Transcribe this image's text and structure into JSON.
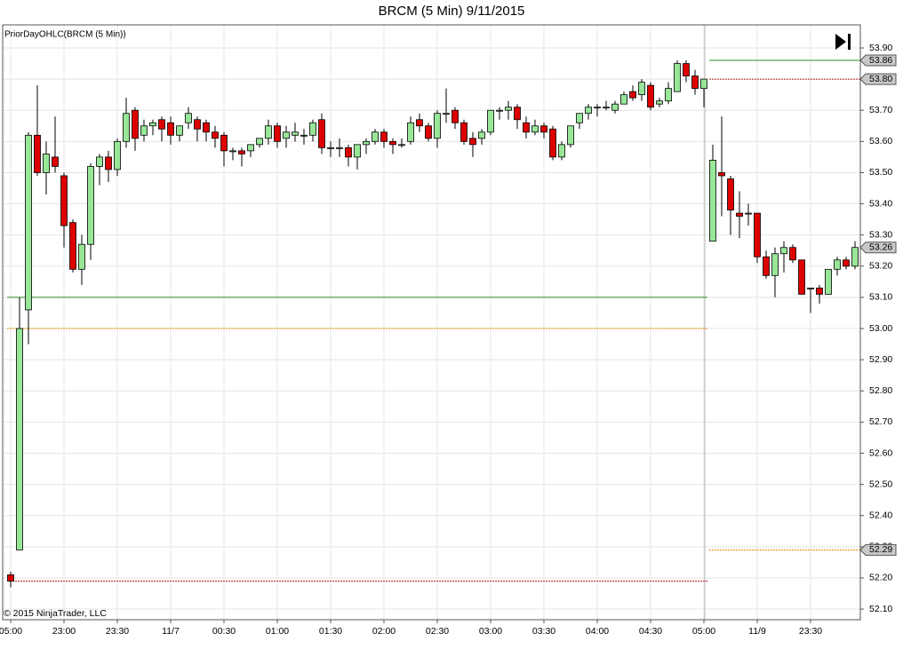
{
  "chart_data": {
    "type": "candlestick",
    "title": "BRCM (5 Min)  9/11/2015",
    "indicator_label": "PriorDayOHLC(BRCM (5 Min))",
    "copyright": "© 2015 NinjaTrader, LLC",
    "up_color": "#98e698",
    "down_color": "#dd0000",
    "grid": true,
    "categories": [
      "05:00",
      null,
      null,
      null,
      null,
      null,
      "23:00",
      null,
      null,
      null,
      null,
      null,
      "23:30",
      null,
      null,
      null,
      null,
      null,
      "11/7",
      null,
      null,
      null,
      null,
      null,
      "00:30",
      null,
      null,
      null,
      null,
      null,
      "01:00",
      null,
      null,
      null,
      null,
      null,
      "01:30",
      null,
      null,
      null,
      null,
      null,
      "02:00",
      null,
      null,
      null,
      null,
      null,
      "02:30",
      null,
      null,
      null,
      null,
      null,
      "03:00",
      null,
      null,
      null,
      null,
      null,
      "03:30",
      null,
      null,
      null,
      null,
      null,
      "04:00",
      null,
      null,
      null,
      null,
      null,
      "04:30",
      null,
      null,
      null,
      null,
      null,
      "05:00",
      null,
      null,
      null,
      null,
      null,
      "11/9",
      null,
      null,
      null,
      null,
      null,
      "23:30",
      null,
      null,
      null,
      null,
      null
    ],
    "open": [
      52.21,
      52.29,
      53.06,
      53.62,
      53.5,
      53.55,
      53.49,
      53.34,
      53.19,
      53.27,
      53.52,
      53.55,
      53.51,
      53.6,
      53.7,
      53.62,
      53.65,
      53.67,
      53.66,
      53.62,
      53.66,
      53.67,
      53.66,
      53.63,
      53.62,
      53.57,
      53.57,
      53.57,
      53.59,
      53.61,
      53.65,
      53.61,
      53.62,
      53.62,
      53.62,
      53.67,
      53.58,
      53.58,
      53.58,
      53.55,
      53.59,
      53.6,
      53.63,
      53.6,
      53.59,
      53.6,
      53.67,
      53.65,
      53.61,
      53.69,
      53.7,
      53.66,
      53.61,
      53.61,
      53.63,
      53.7,
      53.7,
      53.71,
      53.66,
      53.63,
      53.65,
      53.64,
      53.55,
      53.59,
      53.66,
      53.69,
      53.71,
      53.71,
      53.7,
      53.72,
      53.76,
      53.75,
      53.78,
      53.72,
      53.73,
      53.76,
      53.85,
      53.81,
      53.77,
      53.28,
      53.5,
      53.48,
      53.37,
      53.37,
      53.37,
      53.23,
      53.17,
      53.24,
      53.26,
      53.22,
      53.13,
      53.13,
      53.11,
      53.19,
      53.22,
      53.2
    ],
    "high": [
      52.22,
      53.1,
      53.63,
      53.78,
      53.6,
      53.68,
      53.5,
      53.35,
      53.3,
      53.53,
      53.56,
      53.57,
      53.61,
      53.74,
      53.71,
      53.67,
      53.67,
      53.68,
      53.68,
      53.65,
      53.71,
      53.68,
      53.67,
      53.65,
      53.63,
      53.58,
      53.58,
      53.59,
      53.61,
      53.67,
      53.66,
      53.65,
      53.66,
      53.64,
      53.67,
      53.69,
      53.6,
      53.61,
      53.59,
      53.59,
      53.61,
      53.64,
      53.64,
      53.61,
      53.61,
      53.68,
      53.69,
      53.66,
      53.7,
      53.77,
      53.71,
      53.67,
      53.63,
      53.64,
      53.7,
      53.71,
      53.73,
      53.72,
      53.68,
      53.67,
      53.66,
      53.65,
      53.6,
      53.65,
      53.69,
      53.72,
      53.72,
      53.73,
      53.73,
      53.76,
      53.78,
      53.8,
      53.79,
      53.74,
      53.79,
      53.86,
      53.86,
      53.83,
      53.8,
      53.59,
      53.68,
      53.49,
      53.44,
      53.4,
      53.37,
      53.25,
      53.26,
      53.28,
      53.27,
      53.22,
      53.13,
      53.14,
      53.19,
      53.23,
      53.23,
      53.28
    ],
    "low": [
      52.17,
      52.29,
      52.95,
      53.49,
      53.43,
      53.5,
      53.26,
      53.18,
      53.14,
      53.22,
      53.46,
      53.47,
      53.49,
      53.58,
      53.57,
      53.6,
      53.62,
      53.6,
      53.59,
      53.6,
      53.64,
      53.6,
      53.6,
      53.58,
      53.52,
      53.54,
      53.52,
      53.55,
      53.58,
      53.59,
      53.58,
      53.58,
      53.6,
      53.59,
      53.6,
      53.56,
      53.55,
      53.55,
      53.52,
      53.51,
      53.56,
      53.59,
      53.58,
      53.56,
      53.58,
      53.59,
      53.63,
      53.6,
      53.58,
      53.66,
      53.64,
      53.59,
      53.55,
      53.59,
      53.62,
      53.67,
      53.67,
      53.64,
      53.61,
      53.62,
      53.61,
      53.54,
      53.54,
      53.58,
      53.64,
      53.67,
      53.68,
      53.7,
      53.69,
      53.72,
      53.73,
      53.73,
      53.7,
      53.71,
      53.72,
      53.76,
      53.79,
      53.75,
      53.71,
      53.28,
      53.36,
      53.3,
      53.29,
      53.33,
      53.21,
      53.16,
      53.1,
      53.18,
      53.21,
      53.11,
      53.05,
      53.08,
      53.11,
      53.17,
      53.19,
      53.19
    ],
    "close": [
      52.19,
      53.0,
      53.62,
      53.5,
      53.56,
      53.52,
      53.33,
      53.19,
      53.27,
      53.52,
      53.55,
      53.51,
      53.6,
      53.69,
      53.61,
      53.65,
      53.66,
      53.64,
      53.62,
      53.65,
      53.69,
      53.64,
      53.63,
      53.61,
      53.57,
      53.57,
      53.56,
      53.59,
      53.61,
      53.65,
      53.6,
      53.63,
      53.63,
      53.62,
      53.66,
      53.58,
      53.58,
      53.58,
      53.55,
      53.59,
      53.6,
      53.63,
      53.6,
      53.59,
      53.59,
      53.66,
      53.65,
      53.61,
      53.69,
      53.69,
      53.66,
      53.6,
      53.59,
      53.63,
      53.7,
      53.7,
      53.71,
      53.67,
      53.63,
      53.65,
      53.63,
      53.55,
      53.59,
      53.65,
      53.69,
      53.71,
      53.71,
      53.71,
      53.72,
      53.75,
      53.74,
      53.79,
      53.71,
      53.73,
      53.77,
      53.85,
      53.81,
      53.77,
      53.8,
      53.54,
      53.49,
      53.38,
      53.36,
      53.37,
      53.23,
      53.17,
      53.24,
      53.26,
      53.22,
      53.11,
      53.13,
      53.11,
      53.19,
      53.22,
      53.2,
      53.26
    ],
    "session_break": 79,
    "prior_day_levels": [
      {
        "from": 0,
        "to": 78,
        "high": 53.1,
        "open": 53.0,
        "low": 52.19
      },
      {
        "from": 79,
        "to": 95,
        "high": 53.86,
        "close": 53.8,
        "open": 52.29
      }
    ],
    "level_colors": {
      "high": "#2e8b2e",
      "open": "#e08a00",
      "low": "#b22222",
      "close": "#b22222"
    },
    "price_markers": [
      53.86,
      {
        "value": 53.8,
        "label": "53.80"
      },
      53.26,
      52.29
    ],
    "ylim": [
      52.066,
      53.974
    ],
    "yticks": [
      {
        "value": 52.1,
        "label": "52.10"
      },
      {
        "value": 52.2,
        "label": "52.20"
      },
      {
        "value": 52.3,
        "label": "52.30"
      },
      {
        "value": 52.4,
        "label": "52.40"
      },
      {
        "value": 52.5,
        "label": "52.50"
      },
      {
        "value": 52.6,
        "label": "52.60"
      },
      {
        "value": 52.7,
        "label": "52.70"
      },
      {
        "value": 52.8,
        "label": "52.80"
      },
      {
        "value": 52.9,
        "label": "52.90"
      },
      {
        "value": 53.0,
        "label": "53.00"
      },
      {
        "value": 53.1,
        "label": "53.10"
      },
      {
        "value": 53.2,
        "label": "53.20"
      },
      {
        "value": 53.3,
        "label": "53.30"
      },
      {
        "value": 53.4,
        "label": "53.40"
      },
      {
        "value": 53.5,
        "label": "53.50"
      },
      {
        "value": 53.6,
        "label": "53.60"
      },
      {
        "value": 53.7,
        "label": "53.70"
      },
      {
        "value": 53.8,
        "label": "53.80"
      },
      {
        "value": 53.9,
        "label": "53.90"
      }
    ]
  }
}
